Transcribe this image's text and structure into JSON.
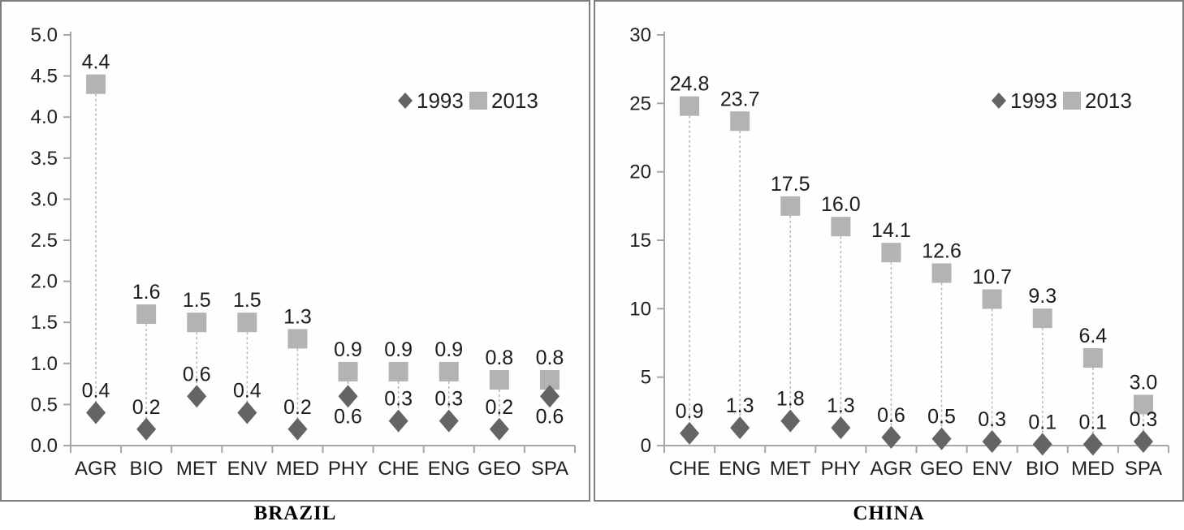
{
  "figure": {
    "description": "Two side-by-side high-low scatter charts comparing 1993 vs 2013 values per discipline",
    "panel_border_color": "#7d7d7d"
  },
  "chart_data": [
    {
      "type": "scatter",
      "title": "BRAZIL",
      "categories": [
        "AGR",
        "BIO",
        "MET",
        "ENV",
        "MED",
        "PHY",
        "CHE",
        "ENG",
        "GEO",
        "SPA"
      ],
      "series": [
        {
          "name": "1993",
          "marker": "diamond",
          "color": "#646464",
          "values": [
            0.4,
            0.2,
            0.6,
            0.4,
            0.2,
            0.6,
            0.3,
            0.3,
            0.2,
            0.6
          ],
          "labels": [
            "0.4",
            "0.2",
            "0.6",
            "0.4",
            "0.2",
            "0.6",
            "0.3",
            "0.3",
            "0.2",
            "0.6"
          ],
          "label_positions": [
            "above",
            "above",
            "above",
            "above",
            "above",
            "below",
            "above",
            "above",
            "above",
            "below"
          ]
        },
        {
          "name": "2013",
          "marker": "square",
          "color": "#b3b3b3",
          "values": [
            4.4,
            1.6,
            1.5,
            1.5,
            1.3,
            0.9,
            0.9,
            0.9,
            0.8,
            0.8
          ],
          "labels": [
            "4.4",
            "1.6",
            "1.5",
            "1.5",
            "1.3",
            "0.9",
            "0.9",
            "0.9",
            "0.8",
            "0.8"
          ],
          "label_positions": [
            "above",
            "above",
            "above",
            "above",
            "above",
            "above",
            "above",
            "above",
            "above",
            "above"
          ]
        }
      ],
      "ylim": [
        0,
        5
      ],
      "yticks": [
        {
          "value": 0.0,
          "label": "0.0"
        },
        {
          "value": 0.5,
          "label": "0.5"
        },
        {
          "value": 1.0,
          "label": "1.0"
        },
        {
          "value": 1.5,
          "label": "1.5"
        },
        {
          "value": 2.0,
          "label": "2.0"
        },
        {
          "value": 2.5,
          "label": "2.5"
        },
        {
          "value": 3.0,
          "label": "3.0"
        },
        {
          "value": 3.5,
          "label": "3.5"
        },
        {
          "value": 4.0,
          "label": "4.0"
        },
        {
          "value": 4.5,
          "label": "4.5"
        },
        {
          "value": 5.0,
          "label": "5.0"
        }
      ],
      "grid": false,
      "legend_position": "upper-right",
      "connector_style": "dashed-high-low-line"
    },
    {
      "type": "scatter",
      "title": "CHINA",
      "categories": [
        "CHE",
        "ENG",
        "MET",
        "PHY",
        "AGR",
        "GEO",
        "ENV",
        "BIO",
        "MED",
        "SPA"
      ],
      "series": [
        {
          "name": "1993",
          "marker": "diamond",
          "color": "#646464",
          "values": [
            0.9,
            1.3,
            1.8,
            1.3,
            0.6,
            0.5,
            0.3,
            0.1,
            0.1,
            0.3
          ],
          "labels": [
            "0.9",
            "1.3",
            "1.8",
            "1.3",
            "0.6",
            "0.5",
            "0.3",
            "0.1",
            "0.1",
            "0.3"
          ],
          "label_positions": [
            "above",
            "above",
            "above",
            "above",
            "above",
            "above",
            "above",
            "above",
            "above",
            "above"
          ]
        },
        {
          "name": "2013",
          "marker": "square",
          "color": "#b3b3b3",
          "values": [
            24.8,
            23.7,
            17.5,
            16.0,
            14.1,
            12.6,
            10.7,
            9.3,
            6.4,
            3.0
          ],
          "labels": [
            "24.8",
            "23.7",
            "17.5",
            "16.0",
            "14.1",
            "12.6",
            "10.7",
            "9.3",
            "6.4",
            "3.0"
          ],
          "label_positions": [
            "above",
            "above",
            "above",
            "above",
            "above",
            "above",
            "above",
            "above",
            "above",
            "above"
          ]
        }
      ],
      "ylim": [
        0,
        30
      ],
      "yticks": [
        {
          "value": 0,
          "label": "0"
        },
        {
          "value": 5,
          "label": "5"
        },
        {
          "value": 10,
          "label": "10"
        },
        {
          "value": 15,
          "label": "15"
        },
        {
          "value": 20,
          "label": "20"
        },
        {
          "value": 25,
          "label": "25"
        },
        {
          "value": 30,
          "label": "30"
        }
      ],
      "grid": false,
      "legend_position": "upper-right",
      "connector_style": "dashed-high-low-line"
    }
  ]
}
